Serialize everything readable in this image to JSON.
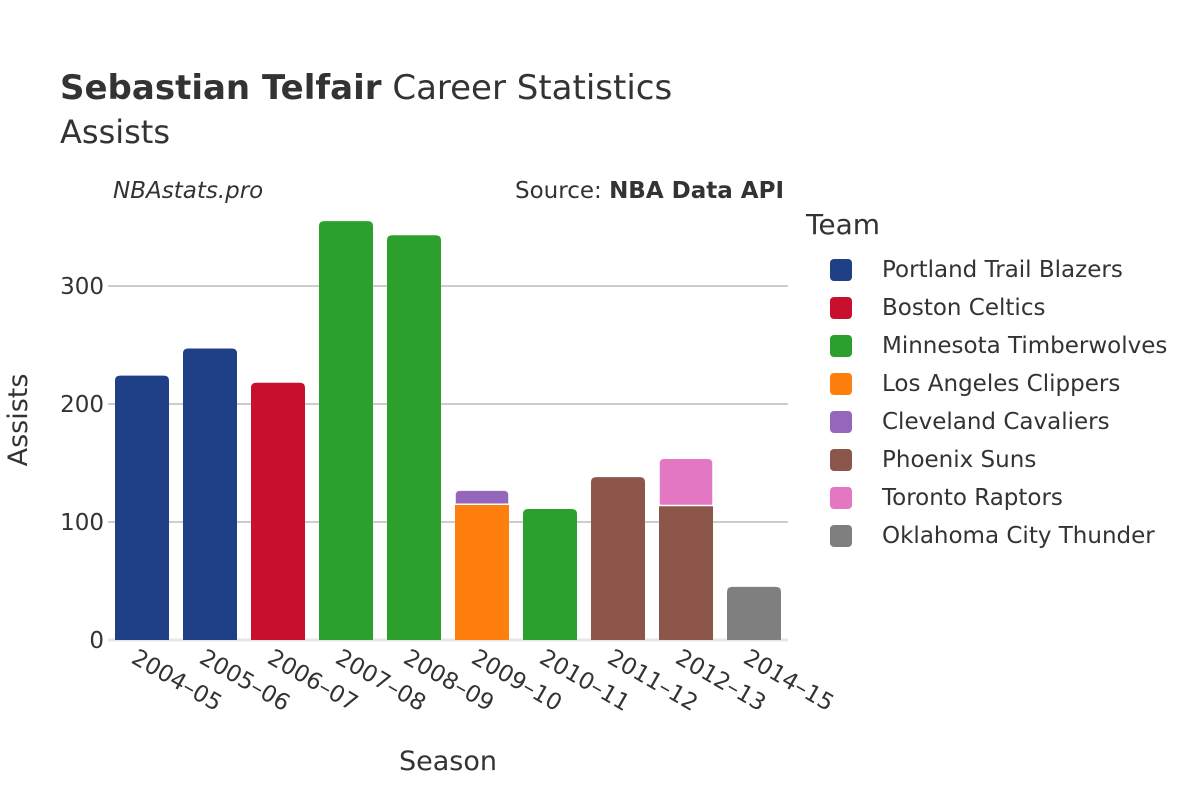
{
  "header": {
    "title_bold": "Sebastian Telfair",
    "title_rest": "Career Statistics",
    "subtitle": "Assists",
    "watermark": "NBAstats.pro",
    "source_prefix": "Source:",
    "source_name": "NBA Data API"
  },
  "legend": {
    "title": "Team",
    "items": [
      {
        "label": "Portland Trail Blazers",
        "color": "#1f3f87"
      },
      {
        "label": "Boston Celtics",
        "color": "#c8102e"
      },
      {
        "label": "Minnesota Timberwolves",
        "color": "#2ca02c"
      },
      {
        "label": "Los Angeles Clippers",
        "color": "#ff7f0e"
      },
      {
        "label": "Cleveland Cavaliers",
        "color": "#9467bd"
      },
      {
        "label": "Phoenix Suns",
        "color": "#8c564b"
      },
      {
        "label": "Toronto Raptors",
        "color": "#e377c2"
      },
      {
        "label": "Oklahoma City Thunder",
        "color": "#7f7f7f"
      }
    ]
  },
  "chart_data": {
    "type": "bar",
    "stacked": true,
    "xlabel": "Season",
    "ylabel": "Assists",
    "ylim": [
      0,
      360
    ],
    "yticks": [
      0,
      100,
      200,
      300
    ],
    "grid": true,
    "legend_position": "right",
    "categories": [
      "2004–05",
      "2005–06",
      "2006–07",
      "2007–08",
      "2008–09",
      "2009–10",
      "2010–11",
      "2011–12",
      "2012–13",
      "2014–15"
    ],
    "bars": [
      {
        "category": "2004–05",
        "segments": [
          {
            "team": "Portland Trail Blazers",
            "value": 224
          }
        ]
      },
      {
        "category": "2005–06",
        "segments": [
          {
            "team": "Portland Trail Blazers",
            "value": 247
          }
        ]
      },
      {
        "category": "2006–07",
        "segments": [
          {
            "team": "Boston Celtics",
            "value": 218
          }
        ]
      },
      {
        "category": "2007–08",
        "segments": [
          {
            "team": "Minnesota Timberwolves",
            "value": 355
          }
        ]
      },
      {
        "category": "2008–09",
        "segments": [
          {
            "team": "Minnesota Timberwolves",
            "value": 343
          }
        ]
      },
      {
        "category": "2009–10",
        "segments": [
          {
            "team": "Los Angeles Clippers",
            "value": 115
          },
          {
            "team": "Cleveland Cavaliers",
            "value": 12
          }
        ]
      },
      {
        "category": "2010–11",
        "segments": [
          {
            "team": "Minnesota Timberwolves",
            "value": 111
          }
        ]
      },
      {
        "category": "2011–12",
        "segments": [
          {
            "team": "Phoenix Suns",
            "value": 138
          }
        ]
      },
      {
        "category": "2012–13",
        "segments": [
          {
            "team": "Phoenix Suns",
            "value": 114
          },
          {
            "team": "Toronto Raptors",
            "value": 40
          }
        ]
      },
      {
        "category": "2014–15",
        "segments": [
          {
            "team": "Oklahoma City Thunder",
            "value": 45
          }
        ]
      }
    ]
  }
}
